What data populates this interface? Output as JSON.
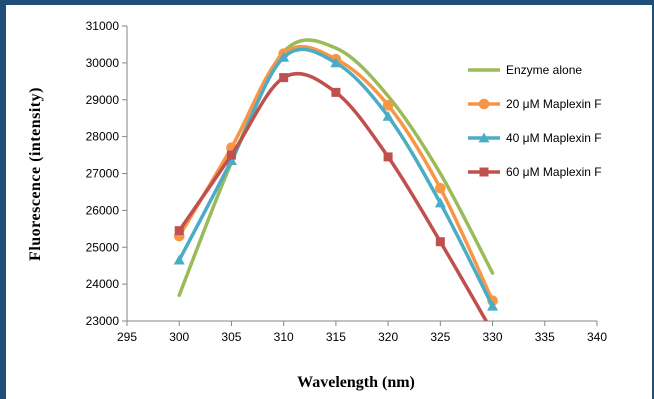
{
  "chart_data": {
    "type": "line",
    "title": "",
    "xlabel": "Wavelength (nm)",
    "ylabel": "Fluorescence (intensity)",
    "xlim": [
      295,
      340
    ],
    "ylim": [
      23000,
      31000
    ],
    "x_ticks": [
      "295",
      "300",
      "305",
      "310",
      "315",
      "320",
      "325",
      "330",
      "335",
      "340"
    ],
    "y_ticks": [
      "23000",
      "24000",
      "25000",
      "26000",
      "27000",
      "28000",
      "29000",
      "30000",
      "31000"
    ],
    "grid": false,
    "legend_position": "right",
    "series": [
      {
        "name": "Enzyme alone",
        "color": "#9bbb59",
        "marker": "none",
        "x": [
          300,
          305,
          310,
          315,
          320,
          325,
          330
        ],
        "y": [
          23700,
          27300,
          30300,
          30400,
          29100,
          27000,
          24300
        ]
      },
      {
        "name": "20 μM Maplexin F",
        "color": "#f79646",
        "marker": "circle",
        "x": [
          300,
          305,
          310,
          315,
          320,
          325,
          330
        ],
        "y": [
          25300,
          27700,
          30250,
          30100,
          28850,
          26600,
          23550
        ]
      },
      {
        "name": "40 μM Maplexin F",
        "color": "#4bacc6",
        "marker": "triangle",
        "x": [
          300,
          305,
          310,
          315,
          320,
          325,
          330
        ],
        "y": [
          24650,
          27350,
          30150,
          30000,
          28550,
          26200,
          23400
        ]
      },
      {
        "name": "60 μM Maplexin F",
        "color": "#c0504d",
        "marker": "square",
        "x": [
          300,
          305,
          310,
          315,
          320,
          325,
          330
        ],
        "y": [
          25450,
          27500,
          29600,
          29200,
          27450,
          25150,
          22700
        ]
      }
    ]
  }
}
